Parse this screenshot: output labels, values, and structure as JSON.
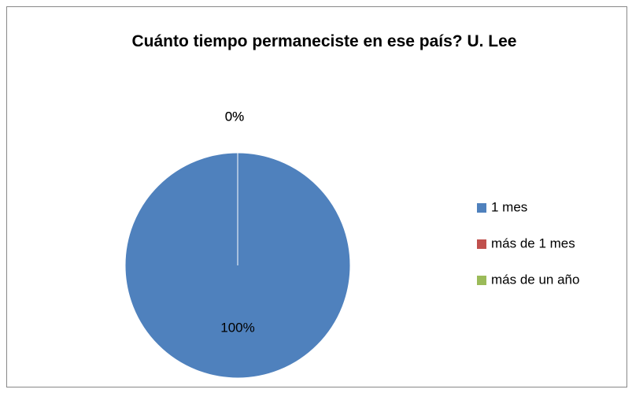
{
  "chart_data": {
    "type": "pie",
    "title": "Cuánto tiempo permaneciste en ese país? U. Lee",
    "categories": [
      "1 mes",
      "más de 1 mes",
      "más de un año"
    ],
    "values": [
      100,
      0,
      0
    ],
    "value_labels": [
      "100%",
      "0%",
      "0%"
    ],
    "colors": [
      "#4f81bd",
      "#c0504d",
      "#9bbb59"
    ],
    "legend": "right"
  }
}
